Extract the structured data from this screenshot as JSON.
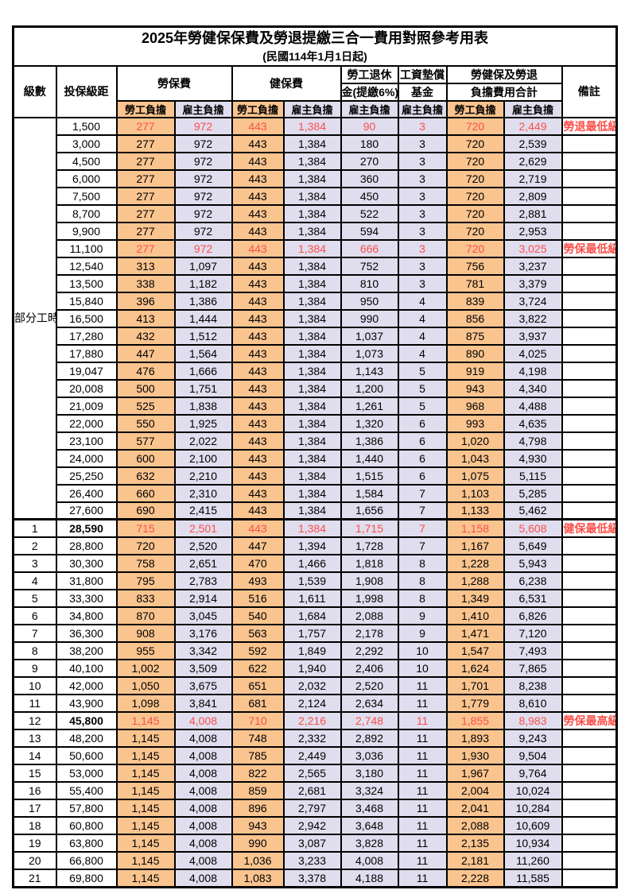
{
  "title": {
    "main": "2025年勞健保保費及勞退提繳三合一費用對照參考用表",
    "sub": "(民國114年1月1日起)"
  },
  "header": {
    "level": "級數",
    "bracket": "投保級距",
    "labor_insurance": "勞保費",
    "health_insurance": "健保費",
    "pension_line1": "勞工退休",
    "pension_line2": "金(提繳6%)",
    "wage_fund_line1": "工資墊償",
    "wage_fund_line2": "基金",
    "total_line1": "勞健保及勞退",
    "total_line2": "負擔費用合計",
    "remark": "備註",
    "employee_burden": "勞工負擔",
    "employer_burden": "雇主負擔"
  },
  "colors": {
    "employee_bg": "#FAC48F",
    "employer_bg": "#E0DDEE",
    "highlight_text": "#FB4F4A",
    "border": "#000000"
  },
  "sections": {
    "part_time": {
      "label": "部分工時",
      "rows": [
        {
          "bracket": "1,500",
          "v": [
            "277",
            "972",
            "443",
            "1,384",
            "90",
            "3",
            "720",
            "2,449"
          ],
          "remark": "勞退最低級距",
          "hl": true
        },
        {
          "bracket": "3,000",
          "v": [
            "277",
            "972",
            "443",
            "1,384",
            "180",
            "3",
            "720",
            "2,539"
          ],
          "remark": ""
        },
        {
          "bracket": "4,500",
          "v": [
            "277",
            "972",
            "443",
            "1,384",
            "270",
            "3",
            "720",
            "2,629"
          ],
          "remark": ""
        },
        {
          "bracket": "6,000",
          "v": [
            "277",
            "972",
            "443",
            "1,384",
            "360",
            "3",
            "720",
            "2,719"
          ],
          "remark": ""
        },
        {
          "bracket": "7,500",
          "v": [
            "277",
            "972",
            "443",
            "1,384",
            "450",
            "3",
            "720",
            "2,809"
          ],
          "remark": ""
        },
        {
          "bracket": "8,700",
          "v": [
            "277",
            "972",
            "443",
            "1,384",
            "522",
            "3",
            "720",
            "2,881"
          ],
          "remark": ""
        },
        {
          "bracket": "9,900",
          "v": [
            "277",
            "972",
            "443",
            "1,384",
            "594",
            "3",
            "720",
            "2,953"
          ],
          "remark": ""
        },
        {
          "bracket": "11,100",
          "v": [
            "277",
            "972",
            "443",
            "1,384",
            "666",
            "3",
            "720",
            "3,025"
          ],
          "remark": "勞保最低級距",
          "hl": true
        },
        {
          "bracket": "12,540",
          "v": [
            "313",
            "1,097",
            "443",
            "1,384",
            "752",
            "3",
            "756",
            "3,237"
          ],
          "remark": ""
        },
        {
          "bracket": "13,500",
          "v": [
            "338",
            "1,182",
            "443",
            "1,384",
            "810",
            "3",
            "781",
            "3,379"
          ],
          "remark": ""
        },
        {
          "bracket": "15,840",
          "v": [
            "396",
            "1,386",
            "443",
            "1,384",
            "950",
            "4",
            "839",
            "3,724"
          ],
          "remark": ""
        },
        {
          "bracket": "16,500",
          "v": [
            "413",
            "1,444",
            "443",
            "1,384",
            "990",
            "4",
            "856",
            "3,822"
          ],
          "remark": ""
        },
        {
          "bracket": "17,280",
          "v": [
            "432",
            "1,512",
            "443",
            "1,384",
            "1,037",
            "4",
            "875",
            "3,937"
          ],
          "remark": ""
        },
        {
          "bracket": "17,880",
          "v": [
            "447",
            "1,564",
            "443",
            "1,384",
            "1,073",
            "4",
            "890",
            "4,025"
          ],
          "remark": ""
        },
        {
          "bracket": "19,047",
          "v": [
            "476",
            "1,666",
            "443",
            "1,384",
            "1,143",
            "5",
            "919",
            "4,198"
          ],
          "remark": ""
        },
        {
          "bracket": "20,008",
          "v": [
            "500",
            "1,751",
            "443",
            "1,384",
            "1,200",
            "5",
            "943",
            "4,340"
          ],
          "remark": ""
        },
        {
          "bracket": "21,009",
          "v": [
            "525",
            "1,838",
            "443",
            "1,384",
            "1,261",
            "5",
            "968",
            "4,488"
          ],
          "remark": ""
        },
        {
          "bracket": "22,000",
          "v": [
            "550",
            "1,925",
            "443",
            "1,384",
            "1,320",
            "6",
            "993",
            "4,635"
          ],
          "remark": ""
        },
        {
          "bracket": "23,100",
          "v": [
            "577",
            "2,022",
            "443",
            "1,384",
            "1,386",
            "6",
            "1,020",
            "4,798"
          ],
          "remark": ""
        },
        {
          "bracket": "24,000",
          "v": [
            "600",
            "2,100",
            "443",
            "1,384",
            "1,440",
            "6",
            "1,043",
            "4,930"
          ],
          "remark": ""
        },
        {
          "bracket": "25,250",
          "v": [
            "632",
            "2,210",
            "443",
            "1,384",
            "1,515",
            "6",
            "1,075",
            "5,115"
          ],
          "remark": ""
        },
        {
          "bracket": "26,400",
          "v": [
            "660",
            "2,310",
            "443",
            "1,384",
            "1,584",
            "7",
            "1,103",
            "5,285"
          ],
          "remark": ""
        },
        {
          "bracket": "27,600",
          "v": [
            "690",
            "2,415",
            "443",
            "1,384",
            "1,656",
            "7",
            "1,133",
            "5,462"
          ],
          "remark": ""
        }
      ]
    },
    "levels": {
      "rows": [
        {
          "level": "1",
          "bracket": "28,590",
          "v": [
            "715",
            "2,501",
            "443",
            "1,384",
            "1,715",
            "7",
            "1,158",
            "5,608"
          ],
          "remark": "健保最低級距",
          "hl": true,
          "big": true,
          "section_start": true
        },
        {
          "level": "2",
          "bracket": "28,800",
          "v": [
            "720",
            "2,520",
            "447",
            "1,394",
            "1,728",
            "7",
            "1,167",
            "5,649"
          ],
          "remark": ""
        },
        {
          "level": "3",
          "bracket": "30,300",
          "v": [
            "758",
            "2,651",
            "470",
            "1,466",
            "1,818",
            "8",
            "1,228",
            "5,943"
          ],
          "remark": ""
        },
        {
          "level": "4",
          "bracket": "31,800",
          "v": [
            "795",
            "2,783",
            "493",
            "1,539",
            "1,908",
            "8",
            "1,288",
            "6,238"
          ],
          "remark": ""
        },
        {
          "level": "5",
          "bracket": "33,300",
          "v": [
            "833",
            "2,914",
            "516",
            "1,611",
            "1,998",
            "8",
            "1,349",
            "6,531"
          ],
          "remark": ""
        },
        {
          "level": "6",
          "bracket": "34,800",
          "v": [
            "870",
            "3,045",
            "540",
            "1,684",
            "2,088",
            "9",
            "1,410",
            "6,826"
          ],
          "remark": ""
        },
        {
          "level": "7",
          "bracket": "36,300",
          "v": [
            "908",
            "3,176",
            "563",
            "1,757",
            "2,178",
            "9",
            "1,471",
            "7,120"
          ],
          "remark": ""
        },
        {
          "level": "8",
          "bracket": "38,200",
          "v": [
            "955",
            "3,342",
            "592",
            "1,849",
            "2,292",
            "10",
            "1,547",
            "7,493"
          ],
          "remark": ""
        },
        {
          "level": "9",
          "bracket": "40,100",
          "v": [
            "1,002",
            "3,509",
            "622",
            "1,940",
            "2,406",
            "10",
            "1,624",
            "7,865"
          ],
          "remark": ""
        },
        {
          "level": "10",
          "bracket": "42,000",
          "v": [
            "1,050",
            "3,675",
            "651",
            "2,032",
            "2,520",
            "11",
            "1,701",
            "8,238"
          ],
          "remark": ""
        },
        {
          "level": "11",
          "bracket": "43,900",
          "v": [
            "1,098",
            "3,841",
            "681",
            "2,124",
            "2,634",
            "11",
            "1,779",
            "8,610"
          ],
          "remark": ""
        },
        {
          "level": "12",
          "bracket": "45,800",
          "v": [
            "1,145",
            "4,008",
            "710",
            "2,216",
            "2,748",
            "11",
            "1,855",
            "8,983"
          ],
          "remark": "勞保最高級距",
          "hl": true,
          "big": true
        },
        {
          "level": "13",
          "bracket": "48,200",
          "v": [
            "1,145",
            "4,008",
            "748",
            "2,332",
            "2,892",
            "11",
            "1,893",
            "9,243"
          ],
          "remark": ""
        },
        {
          "level": "14",
          "bracket": "50,600",
          "v": [
            "1,145",
            "4,008",
            "785",
            "2,449",
            "3,036",
            "11",
            "1,930",
            "9,504"
          ],
          "remark": ""
        },
        {
          "level": "15",
          "bracket": "53,000",
          "v": [
            "1,145",
            "4,008",
            "822",
            "2,565",
            "3,180",
            "11",
            "1,967",
            "9,764"
          ],
          "remark": ""
        },
        {
          "level": "16",
          "bracket": "55,400",
          "v": [
            "1,145",
            "4,008",
            "859",
            "2,681",
            "3,324",
            "11",
            "2,004",
            "10,024"
          ],
          "remark": ""
        },
        {
          "level": "17",
          "bracket": "57,800",
          "v": [
            "1,145",
            "4,008",
            "896",
            "2,797",
            "3,468",
            "11",
            "2,041",
            "10,284"
          ],
          "remark": ""
        },
        {
          "level": "18",
          "bracket": "60,800",
          "v": [
            "1,145",
            "4,008",
            "943",
            "2,942",
            "3,648",
            "11",
            "2,088",
            "10,609"
          ],
          "remark": ""
        },
        {
          "level": "19",
          "bracket": "63,800",
          "v": [
            "1,145",
            "4,008",
            "990",
            "3,087",
            "3,828",
            "11",
            "2,135",
            "10,934"
          ],
          "remark": ""
        },
        {
          "level": "20",
          "bracket": "66,800",
          "v": [
            "1,145",
            "4,008",
            "1,036",
            "3,233",
            "4,008",
            "11",
            "2,181",
            "11,260"
          ],
          "remark": ""
        },
        {
          "level": "21",
          "bracket": "69,800",
          "v": [
            "1,145",
            "4,008",
            "1,083",
            "3,378",
            "4,188",
            "11",
            "2,228",
            "11,585"
          ],
          "remark": ""
        }
      ]
    }
  }
}
